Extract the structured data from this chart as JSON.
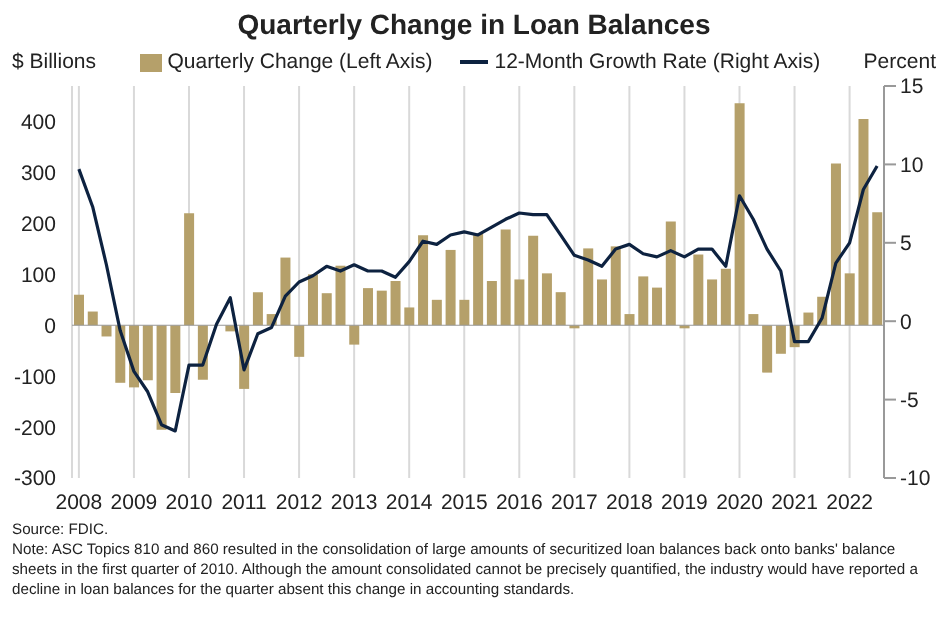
{
  "chart_data": {
    "type": "bar",
    "title": "Quarterly Change in Loan Balances",
    "ylabel": "$ Billions",
    "y2label": "Percent",
    "categories": [
      "2008",
      null,
      null,
      null,
      "2009",
      null,
      null,
      null,
      "2010",
      null,
      null,
      null,
      "2011",
      null,
      null,
      null,
      "2012",
      null,
      null,
      null,
      "2013",
      null,
      null,
      null,
      "2014",
      null,
      null,
      null,
      "2015",
      null,
      null,
      null,
      "2016",
      null,
      null,
      null,
      "2017",
      null,
      null,
      null,
      "2018",
      null,
      null,
      null,
      "2019",
      null,
      null,
      null,
      "2020",
      null,
      null,
      null,
      "2021",
      null,
      null,
      null,
      "2022",
      null,
      null
    ],
    "series": [
      {
        "name": "Quarterly Change (Left Axis)",
        "color": "#b5a06a",
        "values": [
          60,
          27,
          -22,
          -113,
          -122,
          -108,
          -205,
          -133,
          220,
          -107,
          0,
          -12,
          -125,
          65,
          22,
          133,
          -62,
          100,
          63,
          117,
          -38,
          73,
          68,
          87,
          35,
          177,
          50,
          148,
          50,
          180,
          87,
          188,
          90,
          176,
          102,
          65,
          -6,
          151,
          90,
          155,
          22,
          96,
          74,
          204,
          -6,
          139,
          90,
          111,
          436,
          22,
          -93,
          -56,
          -43,
          25,
          56,
          318,
          102,
          405,
          222
        ]
      },
      {
        "name": "12-Month Growth Rate (Right Axis)",
        "type": "line",
        "axis": "y2",
        "color": "#0d2240",
        "values": [
          9.7,
          7.3,
          3.6,
          -0.6,
          -3.2,
          -4.5,
          -6.6,
          -7.0,
          -2.8,
          -2.8,
          -0.2,
          1.5,
          -3.1,
          -0.8,
          -0.4,
          1.6,
          2.5,
          2.9,
          3.5,
          3.2,
          3.6,
          3.2,
          3.2,
          2.8,
          3.8,
          5.1,
          4.9,
          5.5,
          5.7,
          5.5,
          6.0,
          6.5,
          6.9,
          6.8,
          6.8,
          5.5,
          4.2,
          3.9,
          3.5,
          4.6,
          4.9,
          4.3,
          4.1,
          4.5,
          4.1,
          4.6,
          4.6,
          3.5,
          8.0,
          6.5,
          4.6,
          3.2,
          -1.3,
          -1.3,
          0.2,
          3.7,
          5.0,
          8.4,
          9.9
        ]
      }
    ],
    "ylim": [
      -300,
      470
    ],
    "yticks": [
      -300,
      -200,
      -100,
      0,
      100,
      200,
      300,
      400
    ],
    "y2lim": [
      -10,
      15
    ],
    "y2ticks": [
      -10,
      -5,
      0,
      5,
      10,
      15
    ],
    "grid": "x",
    "legend": "top",
    "marker": "none",
    "ref_lines": [
      {
        "axis": "y",
        "value": 0,
        "color": "#999999"
      }
    ],
    "annotations": [
      "Source: FDIC.",
      "Note: ASC Topics 810 and 860 resulted in the consolidation of large amounts of securitized loan balances back onto banks' balance sheets in the first quarter of 2010. Although the amount consolidated cannot be precisely quantified, the industry would have reported a decline in loan balances for the quarter absent this change in accounting standards."
    ]
  }
}
